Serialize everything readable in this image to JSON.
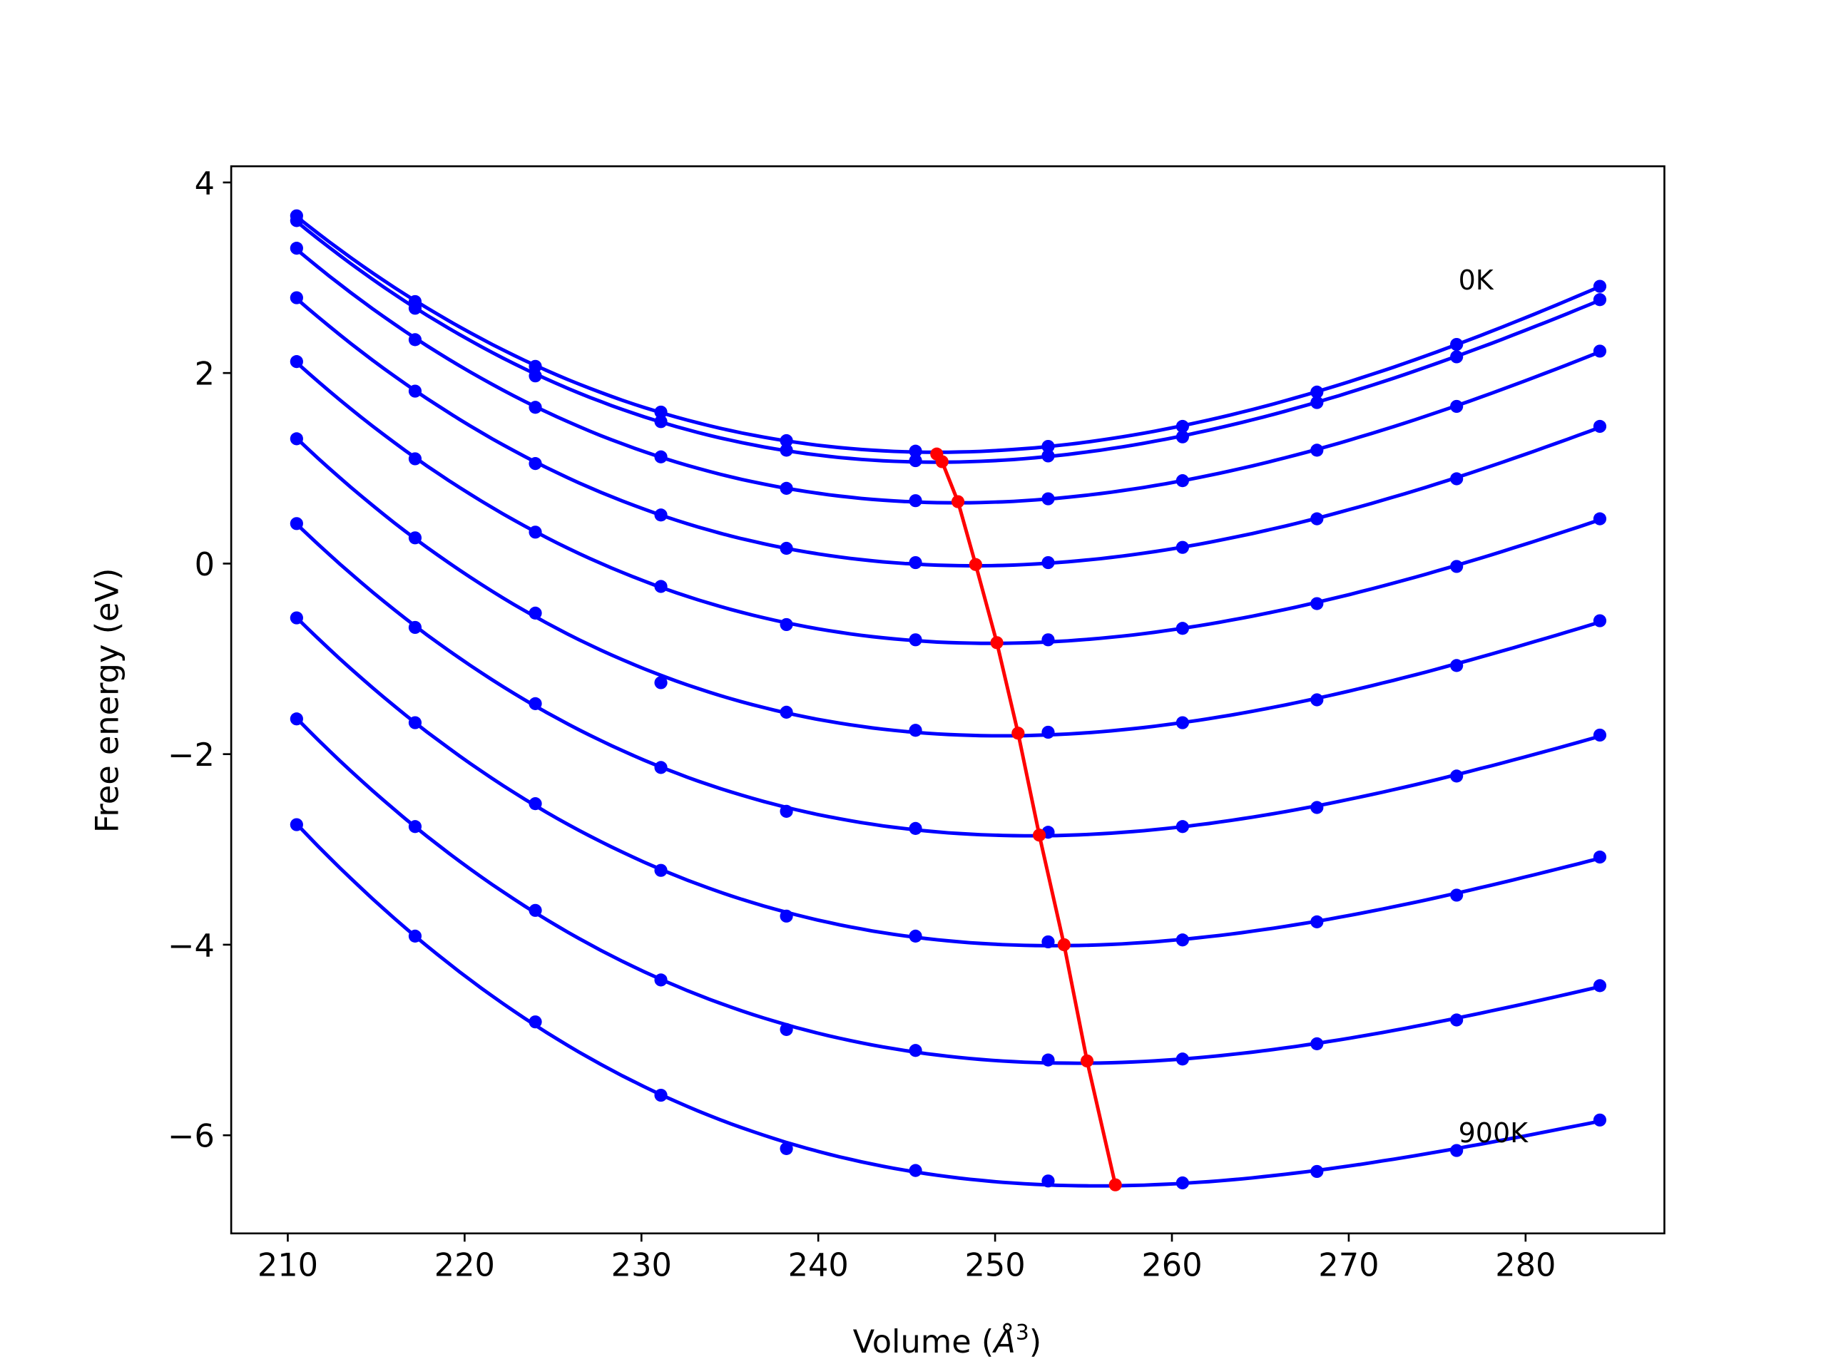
{
  "chart_data": {
    "type": "line",
    "title": "",
    "xlabel": "Volume (Å³)",
    "xlabel_base": "Volume (",
    "xlabel_unit": "Å",
    "xlabel_sup": "3",
    "xlabel_close": ")",
    "ylabel": "Free energy (eV)",
    "xlim": [
      206.8,
      287.85
    ],
    "ylim": [
      -7.03,
      4.17
    ],
    "xticks": [
      210,
      220,
      230,
      240,
      250,
      260,
      270,
      280
    ],
    "yticks": [
      -6,
      -4,
      -2,
      0,
      2,
      4
    ],
    "ytick_labels": [
      "−6",
      "−4",
      "−2",
      "0",
      "2",
      "4"
    ],
    "grid": false,
    "colors": {
      "curves": "#0000ff",
      "minima": "#ff0000"
    },
    "x": [
      210.5,
      217.2,
      224.0,
      231.1,
      238.2,
      245.5,
      253.0,
      260.6,
      268.2,
      276.1,
      284.2
    ],
    "series": [
      {
        "values": [
          3.65,
          2.75,
          2.07,
          1.59,
          1.29,
          1.18,
          1.23,
          1.44,
          1.8,
          2.3,
          2.91
        ]
      },
      {
        "values": [
          3.6,
          2.68,
          1.97,
          1.49,
          1.19,
          1.08,
          1.13,
          1.33,
          1.69,
          2.17,
          2.77
        ]
      },
      {
        "values": [
          3.31,
          2.35,
          1.64,
          1.12,
          0.79,
          0.66,
          0.68,
          0.87,
          1.19,
          1.65,
          2.23
        ]
      },
      {
        "values": [
          2.79,
          1.81,
          1.05,
          0.51,
          0.16,
          0.01,
          0.01,
          0.17,
          0.47,
          0.89,
          1.44
        ]
      },
      {
        "values": [
          2.12,
          1.1,
          0.33,
          -0.24,
          -0.64,
          -0.8,
          -0.8,
          -0.68,
          -0.42,
          -0.03,
          0.47
        ]
      },
      {
        "values": [
          1.31,
          0.27,
          -0.52,
          -1.25,
          -1.56,
          -1.75,
          -1.77,
          -1.67,
          -1.43,
          -1.07,
          -0.6
        ]
      },
      {
        "values": [
          0.42,
          -0.67,
          -1.47,
          -2.14,
          -2.6,
          -2.78,
          -2.82,
          -2.76,
          -2.56,
          -2.23,
          -1.8
        ]
      },
      {
        "values": [
          -0.57,
          -1.67,
          -2.52,
          -3.22,
          -3.7,
          -3.91,
          -3.97,
          -3.95,
          -3.76,
          -3.48,
          -3.08
        ]
      },
      {
        "values": [
          -1.63,
          -2.76,
          -3.64,
          -4.37,
          -4.89,
          -5.11,
          -5.21,
          -5.2,
          -5.04,
          -4.79,
          -4.43
        ]
      },
      {
        "values": [
          -2.74,
          -3.91,
          -4.81,
          -5.58,
          -6.14,
          -6.37,
          -6.48,
          -6.5,
          -6.38,
          -6.16,
          -5.84
        ]
      }
    ],
    "minima": {
      "x": [
        246.7,
        247.0,
        247.9,
        248.9,
        250.1,
        251.3,
        252.5,
        253.9,
        255.2,
        256.8
      ],
      "y": [
        1.15,
        1.07,
        0.65,
        -0.01,
        -0.83,
        -1.78,
        -2.85,
        -4.0,
        -5.22,
        -6.52
      ]
    },
    "annotations": [
      {
        "text": "0K",
        "x": 276.2,
        "y": 3.0
      },
      {
        "text": "900K",
        "x": 276.2,
        "y": -5.95
      }
    ]
  }
}
